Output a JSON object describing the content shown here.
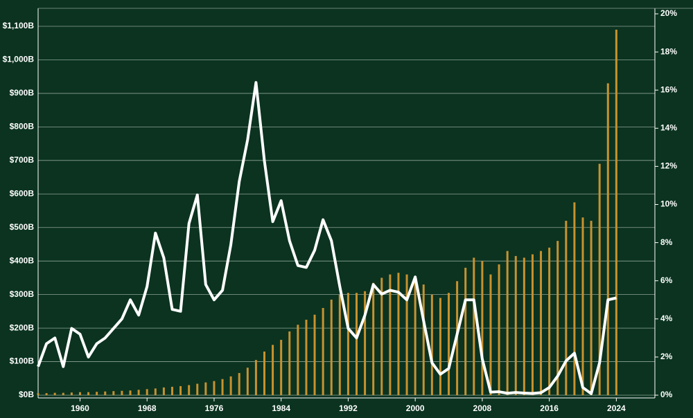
{
  "chart_data": {
    "type": "bar-line",
    "x": [
      1955,
      1956,
      1957,
      1958,
      1959,
      1960,
      1961,
      1962,
      1963,
      1964,
      1965,
      1966,
      1967,
      1968,
      1969,
      1970,
      1971,
      1972,
      1973,
      1974,
      1975,
      1976,
      1977,
      1978,
      1979,
      1980,
      1981,
      1982,
      1983,
      1984,
      1985,
      1986,
      1987,
      1988,
      1989,
      1990,
      1991,
      1992,
      1993,
      1994,
      1995,
      1996,
      1997,
      1998,
      1999,
      2000,
      2001,
      2002,
      2003,
      2004,
      2005,
      2006,
      2007,
      2008,
      2009,
      2010,
      2011,
      2012,
      2013,
      2014,
      2015,
      2016,
      2017,
      2018,
      2019,
      2020,
      2021,
      2022,
      2023,
      2024
    ],
    "series": [
      {
        "type": "bar",
        "color": "#c8922f",
        "values": [
          6,
          6,
          7,
          7,
          8,
          9,
          9,
          10,
          11,
          12,
          13,
          14,
          16,
          18,
          20,
          23,
          25,
          27,
          30,
          34,
          38,
          42,
          48,
          56,
          66,
          82,
          105,
          130,
          150,
          165,
          190,
          210,
          225,
          240,
          260,
          285,
          300,
          305,
          305,
          310,
          335,
          350,
          360,
          365,
          360,
          355,
          330,
          300,
          290,
          305,
          340,
          380,
          410,
          400,
          360,
          390,
          430,
          415,
          410,
          420,
          430,
          440,
          460,
          520,
          575,
          530,
          520,
          690,
          930,
          1090
        ]
      },
      {
        "type": "line",
        "axis": "y2",
        "color": "#ffffff",
        "values": [
          1.5,
          2.7,
          3.0,
          1.5,
          3.5,
          3.2,
          2.0,
          2.7,
          3.0,
          3.5,
          4.0,
          5.0,
          4.2,
          5.7,
          8.5,
          7.2,
          4.5,
          4.4,
          9.0,
          10.5,
          5.8,
          5.0,
          5.5,
          7.9,
          11.2,
          13.4,
          16.4,
          12.3,
          9.1,
          10.2,
          8.1,
          6.8,
          6.7,
          7.6,
          9.2,
          8.1,
          5.7,
          3.5,
          3.0,
          4.2,
          5.8,
          5.3,
          5.5,
          5.4,
          5.0,
          6.2,
          3.9,
          1.7,
          1.1,
          1.4,
          3.2,
          5.0,
          5.0,
          1.9,
          0.16,
          0.18,
          0.1,
          0.14,
          0.11,
          0.09,
          0.13,
          0.4,
          1.0,
          1.8,
          2.2,
          0.4,
          0.08,
          1.7,
          5.0,
          5.1
        ]
      }
    ],
    "xlim": [
      1955,
      2028.6
    ],
    "xticks": [
      1960,
      1968,
      1976,
      1984,
      1992,
      2000,
      2008,
      2016,
      2024
    ],
    "ylim": [
      0,
      1137.2
    ],
    "yticks": [
      {
        "value": 0,
        "label": "$0B"
      },
      {
        "value": 100,
        "label": "$100B"
      },
      {
        "value": 200,
        "label": "$200B"
      },
      {
        "value": 300,
        "label": "$300B"
      },
      {
        "value": 400,
        "label": "$400B"
      },
      {
        "value": 500,
        "label": "$500B"
      },
      {
        "value": 600,
        "label": "$600B"
      },
      {
        "value": 700,
        "label": "$700B"
      },
      {
        "value": 800,
        "label": "$800B"
      },
      {
        "value": 900,
        "label": "$900B"
      },
      {
        "value": 1000,
        "label": "$1,000B"
      },
      {
        "value": 1100,
        "label": "$1,100B"
      }
    ],
    "y2lim": [
      0,
      20
    ],
    "y2ticks": [
      {
        "value": 0,
        "label": "0%"
      },
      {
        "value": 2,
        "label": "2%"
      },
      {
        "value": 4,
        "label": "4%"
      },
      {
        "value": 6,
        "label": "6%"
      },
      {
        "value": 8,
        "label": "8%"
      },
      {
        "value": 10,
        "label": "10%"
      },
      {
        "value": 12,
        "label": "12%"
      },
      {
        "value": 14,
        "label": "14%"
      },
      {
        "value": 16,
        "label": "16%"
      },
      {
        "value": 18,
        "label": "18%"
      },
      {
        "value": 20,
        "label": "20%"
      }
    ],
    "grid": true
  }
}
